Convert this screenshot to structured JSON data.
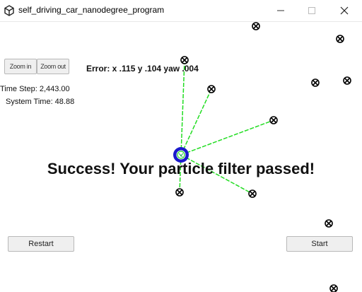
{
  "window": {
    "title": "self_driving_car_nanodegree_program"
  },
  "toolbar": {
    "zoom_in_label": "Zoom in",
    "zoom_out_label": "Zoom out"
  },
  "error": {
    "text": "Error: x .115 y .104 yaw .004"
  },
  "stats": {
    "time_step": "Time Step: 2,443.00",
    "system_time": "System Time: 48.88"
  },
  "status": {
    "message": "Success! Your particle filter passed!"
  },
  "controls": {
    "restart_label": "Restart",
    "start_label": "Start"
  },
  "colors": {
    "sensor_line": "#22dd22",
    "car": "#1a1acc",
    "landmark": "#000000"
  }
}
